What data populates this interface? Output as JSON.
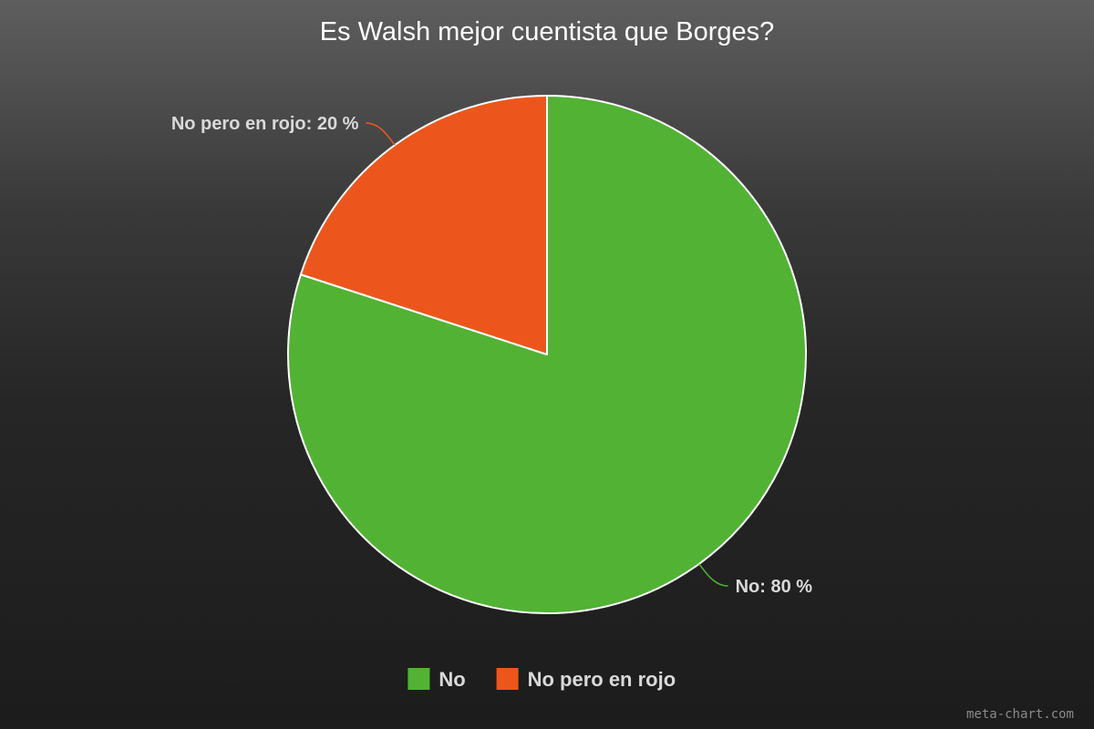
{
  "chart_data": {
    "type": "pie",
    "title": "Es Walsh mejor cuentista que Borges?",
    "slices": [
      {
        "label": "No",
        "value": 80,
        "color": "#52b234",
        "data_label": "No: 80 %"
      },
      {
        "label": "No pero en rojo",
        "value": 20,
        "color": "#ec561d",
        "data_label": "No pero en rojo: 20 %"
      }
    ],
    "legend": {
      "placement": "bottom-center",
      "entries": [
        "No",
        "No pero en rojo"
      ]
    }
  },
  "colors": {
    "title_text": "#ffffff",
    "label_text": "#d9d9d9",
    "slice_border": "#ffffff",
    "credit_text": "#8a8a8a"
  },
  "credit": "meta-chart.com"
}
